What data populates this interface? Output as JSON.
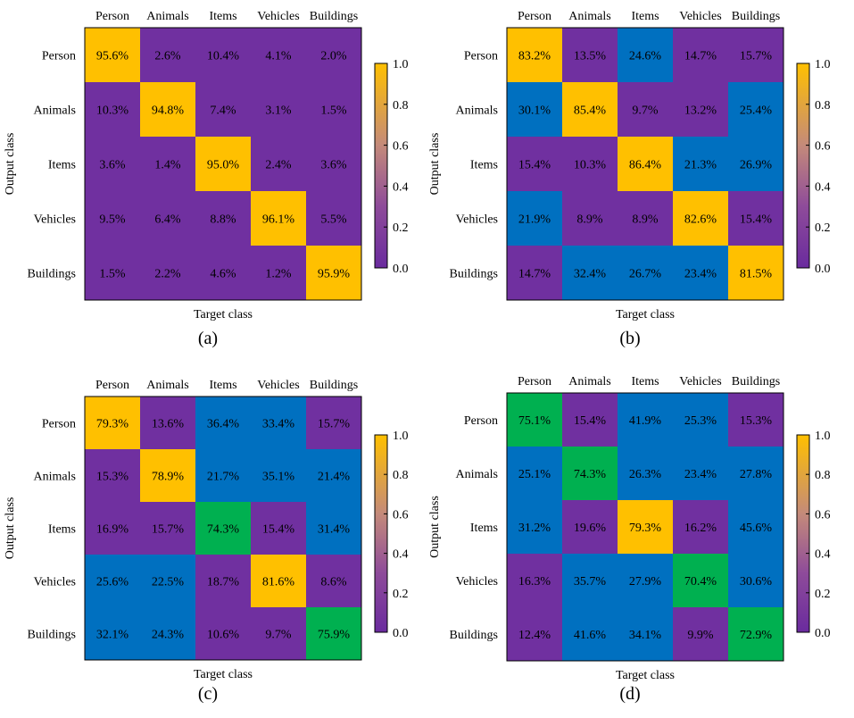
{
  "colors": {
    "purple": "#7030A0",
    "blue": "#0070C0",
    "gold": "#FFC000",
    "green": "#00B050"
  },
  "chart_data": [
    {
      "type": "heatmap",
      "panel_label": "(a)",
      "xlabel": "Target class",
      "ylabel": "Output class",
      "x_categories": [
        "Person",
        "Animals",
        "Items",
        "Vehicles",
        "Buildings"
      ],
      "y_categories": [
        "Person",
        "Animals",
        "Items",
        "Vehicles",
        "Buildings"
      ],
      "values": [
        [
          "95.6%",
          "2.6%",
          "10.4%",
          "4.1%",
          "2.0%"
        ],
        [
          "10.3%",
          "94.8%",
          "7.4%",
          "3.1%",
          "1.5%"
        ],
        [
          "3.6%",
          "1.4%",
          "95.0%",
          "2.4%",
          "3.6%"
        ],
        [
          "9.5%",
          "6.4%",
          "8.8%",
          "96.1%",
          "5.5%"
        ],
        [
          "1.5%",
          "2.2%",
          "4.6%",
          "1.2%",
          "95.9%"
        ]
      ],
      "cell_colors": [
        [
          "gold",
          "purple",
          "purple",
          "purple",
          "purple"
        ],
        [
          "purple",
          "gold",
          "purple",
          "purple",
          "purple"
        ],
        [
          "purple",
          "purple",
          "gold",
          "purple",
          "purple"
        ],
        [
          "purple",
          "purple",
          "purple",
          "gold",
          "purple"
        ],
        [
          "purple",
          "purple",
          "purple",
          "purple",
          "gold"
        ]
      ],
      "colorbar": {
        "range": [
          0,
          1
        ],
        "ticks": [
          "0.0",
          "0.2",
          "0.4",
          "0.6",
          "0.8",
          "1.0"
        ]
      }
    },
    {
      "type": "heatmap",
      "panel_label": "(b)",
      "xlabel": "Target class",
      "ylabel": "Output class",
      "x_categories": [
        "Person",
        "Animals",
        "Items",
        "Vehicles",
        "Buildings"
      ],
      "y_categories": [
        "Person",
        "Animals",
        "Items",
        "Vehicles",
        "Buildings"
      ],
      "values": [
        [
          "83.2%",
          "13.5%",
          "24.6%",
          "14.7%",
          "15.7%"
        ],
        [
          "30.1%",
          "85.4%",
          "9.7%",
          "13.2%",
          "25.4%"
        ],
        [
          "15.4%",
          "10.3%",
          "86.4%",
          "21.3%",
          "26.9%"
        ],
        [
          "21.9%",
          "8.9%",
          "8.9%",
          "82.6%",
          "15.4%"
        ],
        [
          "14.7%",
          "32.4%",
          "26.7%",
          "23.4%",
          "81.5%"
        ]
      ],
      "cell_colors": [
        [
          "gold",
          "purple",
          "blue",
          "purple",
          "purple"
        ],
        [
          "blue",
          "gold",
          "purple",
          "purple",
          "blue"
        ],
        [
          "purple",
          "purple",
          "gold",
          "blue",
          "blue"
        ],
        [
          "blue",
          "purple",
          "purple",
          "gold",
          "purple"
        ],
        [
          "purple",
          "blue",
          "blue",
          "blue",
          "gold"
        ]
      ],
      "colorbar": {
        "range": [
          0,
          1
        ],
        "ticks": [
          "0.0",
          "0.2",
          "0.4",
          "0.6",
          "0.8",
          "1.0"
        ]
      }
    },
    {
      "type": "heatmap",
      "panel_label": "(c)",
      "xlabel": "Target class",
      "ylabel": "Output class",
      "x_categories": [
        "Person",
        "Animals",
        "Items",
        "Vehicles",
        "Buildings"
      ],
      "y_categories": [
        "Person",
        "Animals",
        "Items",
        "Vehicles",
        "Buildings"
      ],
      "values": [
        [
          "79.3%",
          "13.6%",
          "36.4%",
          "33.4%",
          "15.7%"
        ],
        [
          "15.3%",
          "78.9%",
          "21.7%",
          "35.1%",
          "21.4%"
        ],
        [
          "16.9%",
          "15.7%",
          "74.3%",
          "15.4%",
          "31.4%"
        ],
        [
          "25.6%",
          "22.5%",
          "18.7%",
          "81.6%",
          "8.6%"
        ],
        [
          "32.1%",
          "24.3%",
          "10.6%",
          "9.7%",
          "75.9%"
        ]
      ],
      "cell_colors": [
        [
          "gold",
          "purple",
          "blue",
          "blue",
          "purple"
        ],
        [
          "purple",
          "gold",
          "blue",
          "blue",
          "blue"
        ],
        [
          "purple",
          "purple",
          "green",
          "purple",
          "blue"
        ],
        [
          "blue",
          "blue",
          "purple",
          "gold",
          "purple"
        ],
        [
          "blue",
          "blue",
          "purple",
          "purple",
          "green"
        ]
      ],
      "colorbar": {
        "range": [
          0,
          1
        ],
        "ticks": [
          "0.0",
          "0.2",
          "0.4",
          "0.6",
          "0.8",
          "1.0"
        ]
      }
    },
    {
      "type": "heatmap",
      "panel_label": "(d)",
      "xlabel": "Target class",
      "ylabel": "Output class",
      "x_categories": [
        "Person",
        "Animals",
        "Items",
        "Vehicles",
        "Buildings"
      ],
      "y_categories": [
        "Person",
        "Animals",
        "Items",
        "Vehicles",
        "Buildings"
      ],
      "values": [
        [
          "75.1%",
          "15.4%",
          "41.9%",
          "25.3%",
          "15.3%"
        ],
        [
          "25.1%",
          "74.3%",
          "26.3%",
          "23.4%",
          "27.8%"
        ],
        [
          "31.2%",
          "19.6%",
          "79.3%",
          "16.2%",
          "45.6%"
        ],
        [
          "16.3%",
          "35.7%",
          "27.9%",
          "70.4%",
          "30.6%"
        ],
        [
          "12.4%",
          "41.6%",
          "34.1%",
          "9.9%",
          "72.9%"
        ]
      ],
      "cell_colors": [
        [
          "green",
          "purple",
          "blue",
          "blue",
          "purple"
        ],
        [
          "blue",
          "green",
          "blue",
          "blue",
          "blue"
        ],
        [
          "blue",
          "purple",
          "gold",
          "purple",
          "blue"
        ],
        [
          "purple",
          "blue",
          "blue",
          "green",
          "blue"
        ],
        [
          "purple",
          "blue",
          "blue",
          "purple",
          "green"
        ]
      ],
      "colorbar": {
        "range": [
          0,
          1
        ],
        "ticks": [
          "0.0",
          "0.2",
          "0.4",
          "0.6",
          "0.8",
          "1.0"
        ]
      }
    }
  ]
}
